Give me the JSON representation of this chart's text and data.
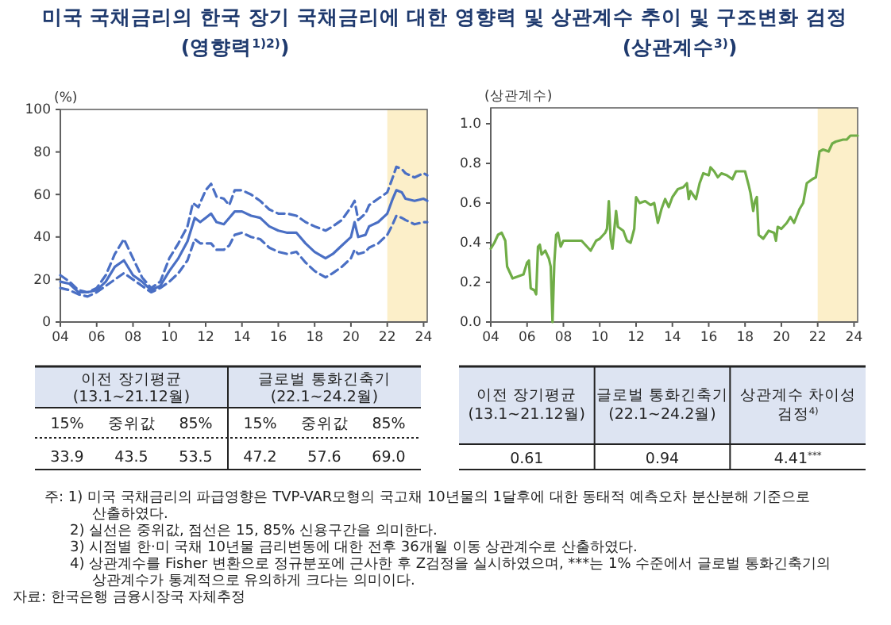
{
  "chart_data": [
    {
      "type": "line",
      "title": "미국 국채금리의 한국 장기 국채금리에 대한 영향력 및 상관계수 추이 및 구조변화 검정",
      "subtitle": "(영향력$^{1)2)}$)",
      "ylabel": "(%)",
      "xlim": [
        2004,
        2024.2
      ],
      "ylim": [
        0,
        100
      ],
      "xticks": [
        {
          "value": 2004,
          "label": "04"
        },
        {
          "value": 2006,
          "label": "06"
        },
        {
          "value": 2008,
          "label": "08"
        },
        {
          "value": 2010,
          "label": "10"
        },
        {
          "value": 2012,
          "label": "12"
        },
        {
          "value": 2014,
          "label": "14"
        },
        {
          "value": 2016,
          "label": "16"
        },
        {
          "value": 2018,
          "label": "18"
        },
        {
          "value": 2020,
          "label": "20"
        },
        {
          "value": 2022,
          "label": "22"
        },
        {
          "value": 2024,
          "label": "24"
        }
      ],
      "yticks": [
        0,
        20,
        40,
        60,
        80,
        100
      ],
      "grid": false,
      "legend": false,
      "bands": [
        {
          "axis": "x",
          "from": 2022,
          "to": 2024.2,
          "color": "#fcefc9"
        }
      ],
      "series": [
        {
          "color": "#4a6fc4",
          "line_style": "solid",
          "x": [
            2004,
            2004.5,
            2005,
            2005.5,
            2006,
            2006.5,
            2007,
            2007.5,
            2008,
            2008.5,
            2009,
            2009.5,
            2010,
            2010.5,
            2011,
            2011.4,
            2011.7,
            2012,
            2012.3,
            2012.6,
            2013,
            2013.3,
            2013.6,
            2014,
            2014.5,
            2015,
            2015.5,
            2016,
            2016.5,
            2017,
            2017.5,
            2018,
            2018.6,
            2019,
            2019.5,
            2020,
            2020.2,
            2020.4,
            2020.8,
            2021,
            2021.5,
            2022,
            2022.3,
            2022.5,
            2022.8,
            2023,
            2023.5,
            2024,
            2024.2
          ],
          "values": [
            19,
            18,
            14,
            14,
            15,
            19,
            26,
            29,
            22,
            19,
            15,
            17,
            24,
            30,
            38,
            49,
            47,
            49,
            51,
            47,
            46,
            49,
            52,
            52,
            50,
            49,
            45,
            43,
            42,
            42,
            37,
            33,
            30,
            32,
            36,
            40,
            47,
            40,
            41,
            45,
            47,
            51,
            58,
            62,
            61,
            58,
            57,
            58,
            57
          ]
        },
        {
          "color": "#4a6fc4",
          "line_style": "dashed",
          "x": [
            2004,
            2004.5,
            2005,
            2005.5,
            2006,
            2006.5,
            2007,
            2007.5,
            2008,
            2008.5,
            2009,
            2009.5,
            2010,
            2010.5,
            2011,
            2011.3,
            2011.6,
            2012,
            2012.3,
            2012.6,
            2013,
            2013.3,
            2013.6,
            2014,
            2014.5,
            2015,
            2015.5,
            2016,
            2016.5,
            2017,
            2017.5,
            2018,
            2018.6,
            2019,
            2019.5,
            2020,
            2020.2,
            2020.4,
            2020.8,
            2021,
            2021.5,
            2022,
            2022.3,
            2022.5,
            2022.8,
            2023,
            2023.5,
            2024,
            2024.2
          ],
          "values": [
            22,
            19,
            15,
            14,
            16,
            22,
            32,
            39,
            30,
            21,
            16,
            19,
            30,
            37,
            45,
            56,
            54,
            62,
            65,
            59,
            58,
            55,
            62,
            62,
            60,
            57,
            53,
            51,
            51,
            50,
            47,
            45,
            43,
            45,
            48,
            54,
            57,
            48,
            51,
            55,
            58,
            61,
            68,
            73,
            72,
            70,
            68,
            70,
            69
          ]
        },
        {
          "color": "#4a6fc4",
          "line_style": "dashed",
          "x": [
            2004,
            2004.5,
            2005,
            2005.5,
            2006,
            2006.5,
            2007,
            2007.5,
            2008,
            2008.5,
            2009,
            2009.5,
            2010,
            2010.5,
            2011,
            2011.4,
            2011.7,
            2012,
            2012.3,
            2012.6,
            2013,
            2013.3,
            2013.6,
            2014,
            2014.5,
            2015,
            2015.5,
            2016,
            2016.5,
            2017,
            2017.5,
            2018,
            2018.6,
            2019,
            2019.5,
            2020,
            2020.2,
            2020.4,
            2020.8,
            2021,
            2021.5,
            2022,
            2022.3,
            2022.5,
            2022.8,
            2023,
            2023.5,
            2024,
            2024.2
          ],
          "values": [
            16,
            15,
            13,
            12,
            14,
            17,
            20,
            23,
            20,
            17,
            14,
            16,
            19,
            23,
            29,
            39,
            37,
            37,
            37,
            34,
            34,
            36,
            41,
            42,
            40,
            39,
            35,
            33,
            32,
            33,
            28,
            24,
            21,
            23,
            26,
            30,
            34,
            32,
            33,
            35,
            37,
            41,
            46,
            50,
            49,
            48,
            46,
            47,
            47
          ]
        }
      ],
      "annotations": [
        "주: 1) 미국 국채금리의 파급영향은 TVP-VAR모형의 국고채 10년물의 1달후에 대한 동태적 예측오차 분산분해 기준으로 산출하였다.",
        "2) 실선은 중위값, 점선은 15, 85% 신용구간을 의미한다.",
        "3) 시점별 한·미 국채 10년물 금리변동에 대한 전후 36개월 이동 상관계수로 산출하였다.",
        "4) 상관계수를 Fisher 변환으로 정규분포에 근사한 후 Z검정을 실시하였으며, ***는 1% 수준에서 글로벌 통화긴축기의 상관계수가 통계적으로 유의하게 크다는 의미이다.",
        "자료: 한국은행 금융시장국 자체추정"
      ]
    },
    {
      "type": "line",
      "subtitle": "(상관계수$^{3)}$)",
      "ylabel": "(상관계수)",
      "xlim": [
        2004,
        2024.2
      ],
      "ylim": [
        0,
        1.08
      ],
      "xticks": [
        {
          "value": 2004,
          "label": "04"
        },
        {
          "value": 2006,
          "label": "06"
        },
        {
          "value": 2008,
          "label": "08"
        },
        {
          "value": 2010,
          "label": "10"
        },
        {
          "value": 2012,
          "label": "12"
        },
        {
          "value": 2014,
          "label": "14"
        },
        {
          "value": 2016,
          "label": "16"
        },
        {
          "value": 2018,
          "label": "18"
        },
        {
          "value": 2020,
          "label": "20"
        },
        {
          "value": 2022,
          "label": "22"
        },
        {
          "value": 2024,
          "label": "24"
        }
      ],
      "yticks": [
        {
          "value": 0,
          "label": "0.0"
        },
        0.2,
        0.4,
        0.6,
        0.8,
        {
          "value": 1,
          "label": "1.0"
        }
      ],
      "grid": false,
      "legend": false,
      "bands": [
        {
          "axis": "x",
          "from": 2022,
          "to": 2024.2,
          "color": "#fcefc9"
        }
      ],
      "series": [
        {
          "color": "#70ad47",
          "line_style": "solid",
          "x": [
            2004,
            2004.2,
            2004.4,
            2004.6,
            2004.8,
            2004.9,
            2005.1,
            2005.2,
            2005.5,
            2005.8,
            2006,
            2006.1,
            2006.2,
            2006.4,
            2006.5,
            2006.6,
            2006.7,
            2006.8,
            2007,
            2007.2,
            2007.3,
            2007.4,
            2007.5,
            2007.6,
            2007.7,
            2007.85,
            2008,
            2008.5,
            2009,
            2009.3,
            2009.5,
            2009.8,
            2010,
            2010.3,
            2010.4,
            2010.5,
            2010.6,
            2010.7,
            2010.9,
            2011,
            2011.3,
            2011.5,
            2011.7,
            2011.9,
            2012,
            2012.2,
            2012.5,
            2012.8,
            2013,
            2013.2,
            2013.4,
            2013.6,
            2013.8,
            2014,
            2014.3,
            2014.6,
            2014.8,
            2014.9,
            2015,
            2015.3,
            2015.5,
            2015.7,
            2016,
            2016.1,
            2016.3,
            2016.5,
            2016.7,
            2017,
            2017.3,
            2017.5,
            2018,
            2018.2,
            2018.3,
            2018.45,
            2018.55,
            2018.65,
            2018.75,
            2019,
            2019.3,
            2019.6,
            2019.7,
            2019.8,
            2020,
            2020.3,
            2020.5,
            2020.7,
            2021,
            2021.2,
            2021.4,
            2021.7,
            2021.9,
            2022.1,
            2022.3,
            2022.6,
            2022.8,
            2023,
            2023.4,
            2023.6,
            2023.8,
            2024,
            2024.2
          ],
          "values": [
            0.37,
            0.4,
            0.44,
            0.45,
            0.41,
            0.28,
            0.24,
            0.22,
            0.23,
            0.24,
            0.3,
            0.31,
            0.17,
            0.16,
            0.14,
            0.38,
            0.39,
            0.34,
            0.36,
            0.32,
            0.28,
            0.0,
            0.3,
            0.44,
            0.45,
            0.38,
            0.41,
            0.41,
            0.41,
            0.38,
            0.36,
            0.41,
            0.42,
            0.45,
            0.47,
            0.61,
            0.42,
            0.37,
            0.56,
            0.48,
            0.46,
            0.41,
            0.4,
            0.47,
            0.63,
            0.6,
            0.61,
            0.59,
            0.6,
            0.5,
            0.57,
            0.62,
            0.58,
            0.63,
            0.67,
            0.68,
            0.7,
            0.62,
            0.66,
            0.62,
            0.7,
            0.75,
            0.74,
            0.78,
            0.76,
            0.73,
            0.75,
            0.74,
            0.72,
            0.76,
            0.76,
            0.69,
            0.65,
            0.56,
            0.61,
            0.63,
            0.44,
            0.42,
            0.46,
            0.45,
            0.41,
            0.48,
            0.47,
            0.5,
            0.53,
            0.5,
            0.57,
            0.6,
            0.7,
            0.72,
            0.73,
            0.86,
            0.87,
            0.86,
            0.9,
            0.91,
            0.92,
            0.92,
            0.94,
            0.94,
            0.94
          ]
        }
      ]
    },
    {
      "type": "other",
      "annotations": [
        "이전 장기평균\n(13.1~21.12월)",
        "글로벌 통화긴축기\n(22.1~24.2월)",
        "15%",
        "중위값",
        "85%",
        "15%",
        "중위값",
        "85%",
        "33.9",
        "43.5",
        "53.5",
        "47.2",
        "57.6",
        "69.0"
      ]
    },
    {
      "type": "other",
      "annotations": [
        "이전 장기평균\n(13.1~21.12월)",
        "글로벌 통화긴축기\n(22.1~24.2월)",
        "상관계수 차이성\n검정$^{4)}$",
        "0.61",
        "0.94",
        "4.41$^{***}$"
      ]
    }
  ]
}
